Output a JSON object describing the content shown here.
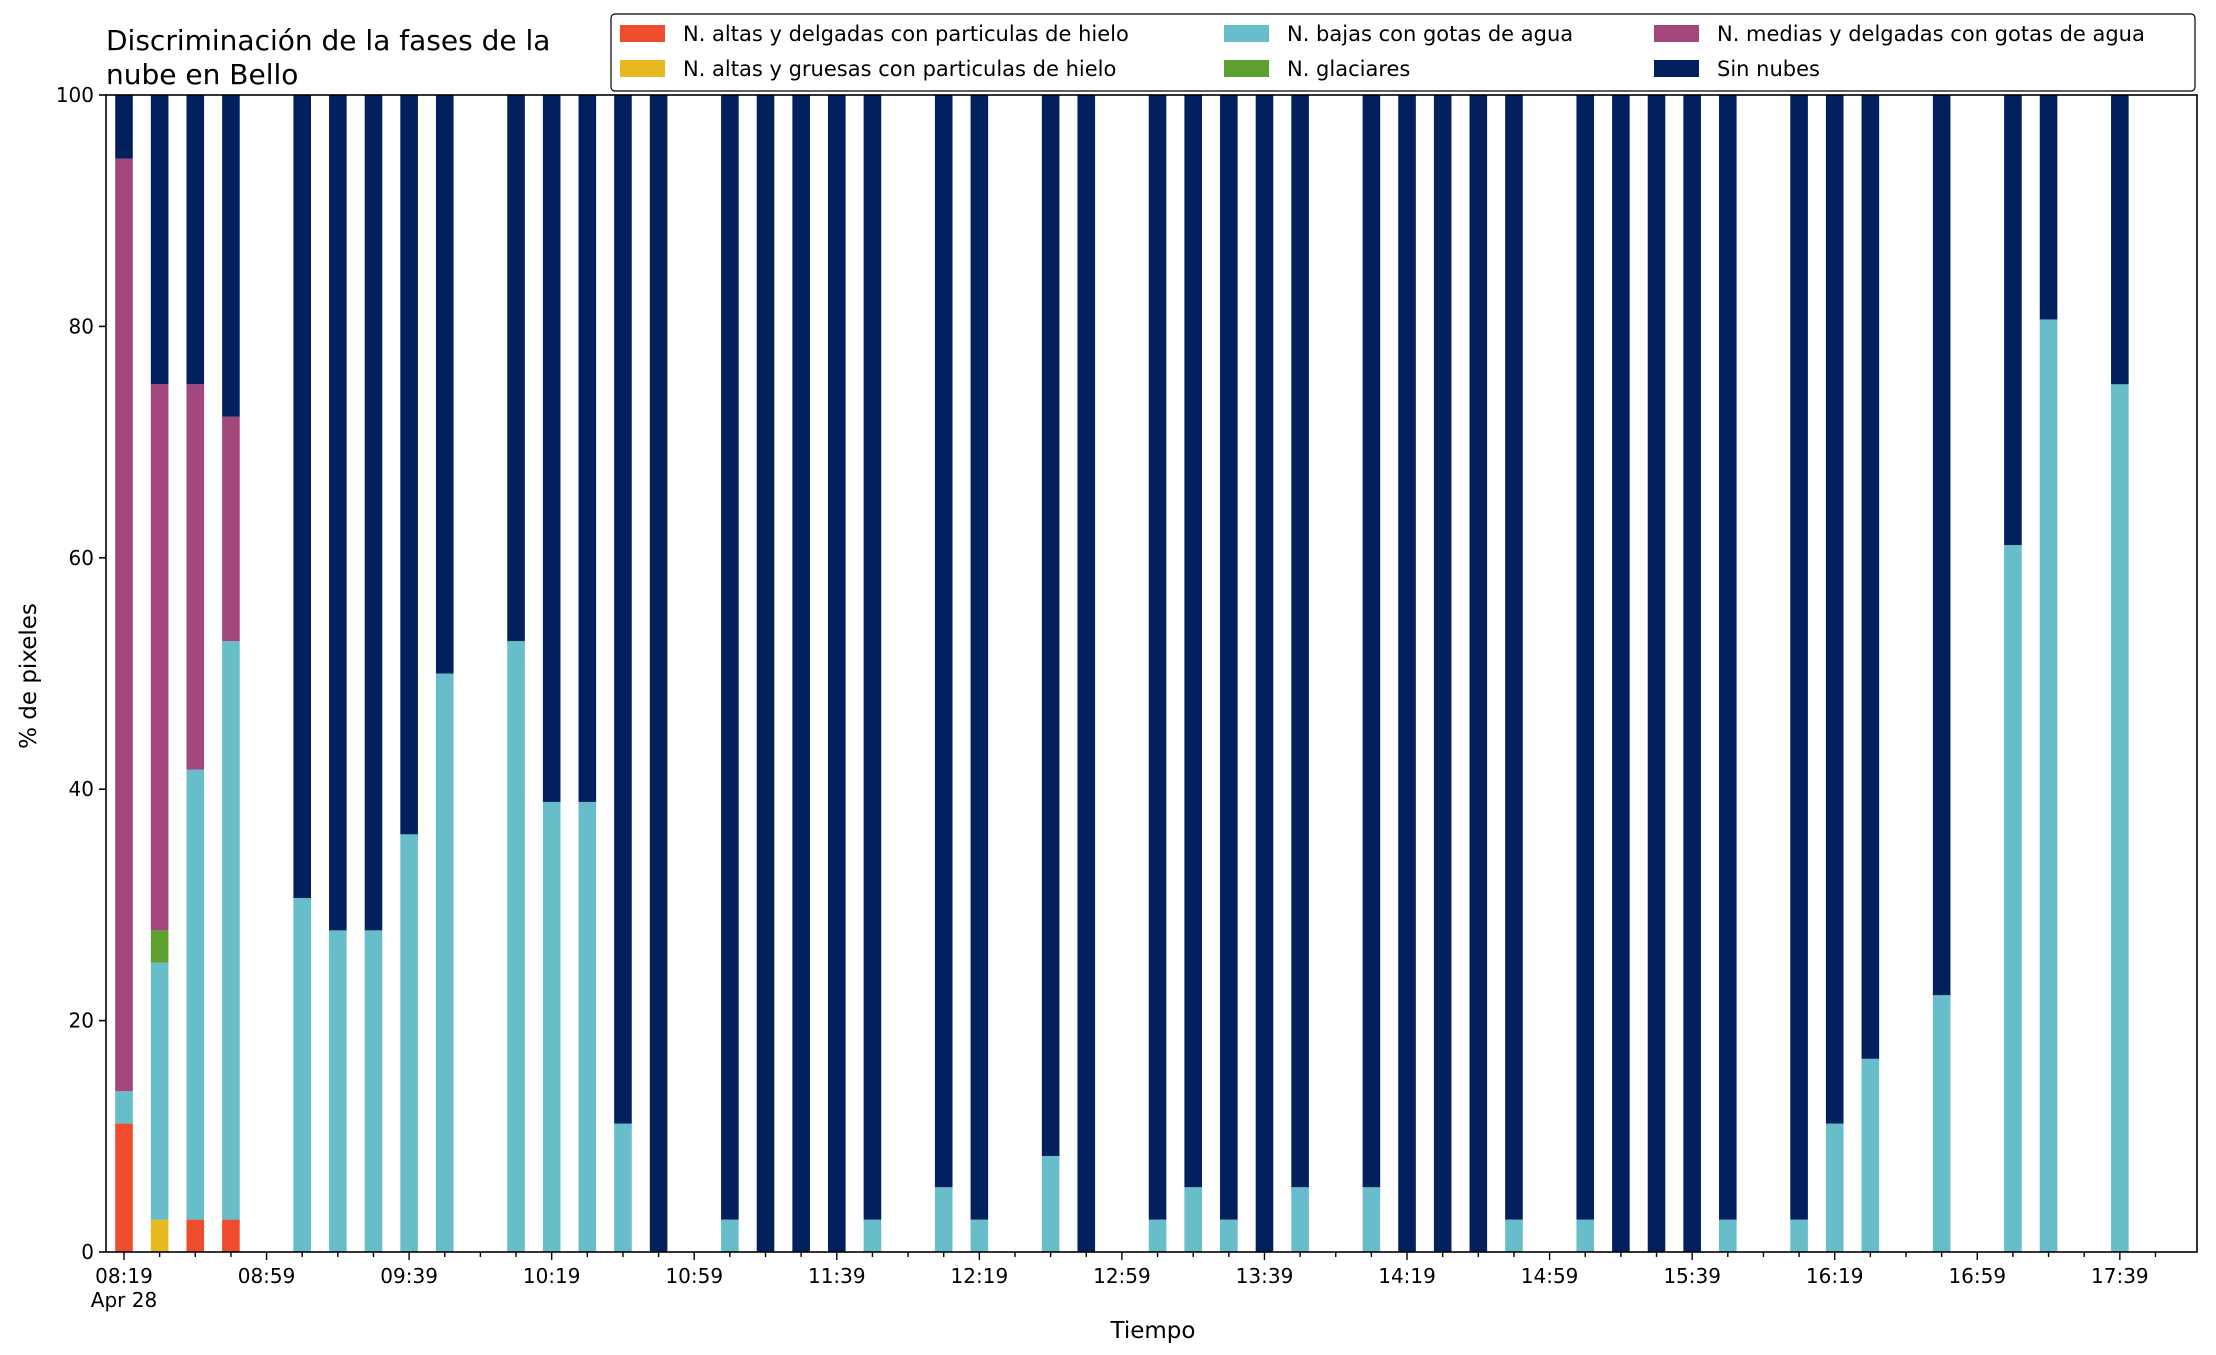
{
  "chart_data": {
    "type": "bar",
    "stacked": true,
    "title_lines": [
      "Discriminación de la fases de la",
      "nube en Bello"
    ],
    "xlabel": "Tiempo",
    "ylabel": "% de pixeles",
    "ylim": [
      0,
      100
    ],
    "yticks": [
      0,
      20,
      40,
      60,
      80,
      100
    ],
    "x_axis": {
      "start": "08:19",
      "step_minutes": 10,
      "slots": 58
    },
    "xtick_labels": [
      {
        "slot": 0,
        "label": "08:19",
        "sublabel": "Apr 28"
      },
      {
        "slot": 4,
        "label": "08:59"
      },
      {
        "slot": 8,
        "label": "09:39"
      },
      {
        "slot": 12,
        "label": "10:19"
      },
      {
        "slot": 16,
        "label": "10:59"
      },
      {
        "slot": 20,
        "label": "11:39"
      },
      {
        "slot": 24,
        "label": "12:19"
      },
      {
        "slot": 28,
        "label": "12:59"
      },
      {
        "slot": 32,
        "label": "13:39"
      },
      {
        "slot": 36,
        "label": "14:19"
      },
      {
        "slot": 40,
        "label": "14:59"
      },
      {
        "slot": 44,
        "label": "15:39"
      },
      {
        "slot": 48,
        "label": "16:19"
      },
      {
        "slot": 52,
        "label": "16:59"
      },
      {
        "slot": 56,
        "label": "17:39"
      }
    ],
    "legend_position": "top-right",
    "legend_columns": 3,
    "series": [
      {
        "key": "altas_delgadas",
        "name": "N. altas y delgadas con particulas de hielo",
        "color": "#ee4c2c"
      },
      {
        "key": "altas_gruesas",
        "name": "N. altas y gruesas con particulas de hielo",
        "color": "#e6b91e"
      },
      {
        "key": "bajas",
        "name": "N. bajas con gotas de agua",
        "color": "#67bdc9"
      },
      {
        "key": "glaciares",
        "name": "N. glaciares",
        "color": "#5ea02f"
      },
      {
        "key": "medias",
        "name": "N. medias y delgadas con gotas de agua",
        "color": "#a3467c"
      },
      {
        "key": "sin_nubes",
        "name": "Sin nubes",
        "color": "#02205e"
      }
    ],
    "stack_order": [
      "altas_delgadas",
      "altas_gruesas",
      "bajas",
      "glaciares",
      "medias",
      "sin_nubes"
    ],
    "bars": [
      {
        "time": "08:19",
        "altas_delgadas": 11.1,
        "altas_gruesas": 0,
        "bajas": 2.8,
        "glaciares": 0,
        "medias": 80.6,
        "sin_nubes": 5.5
      },
      {
        "time": "08:29",
        "altas_delgadas": 0,
        "altas_gruesas": 2.8,
        "bajas": 22.2,
        "glaciares": 2.8,
        "medias": 47.2,
        "sin_nubes": 25.0
      },
      {
        "time": "08:39",
        "altas_delgadas": 2.8,
        "altas_gruesas": 0,
        "bajas": 38.9,
        "glaciares": 0,
        "medias": 33.3,
        "sin_nubes": 25.0
      },
      {
        "time": "08:49",
        "altas_delgadas": 2.8,
        "altas_gruesas": 0,
        "bajas": 50.0,
        "glaciares": 0,
        "medias": 19.4,
        "sin_nubes": 27.8
      },
      {
        "time": "09:09",
        "altas_delgadas": 0,
        "altas_gruesas": 0,
        "bajas": 30.6,
        "glaciares": 0,
        "medias": 0,
        "sin_nubes": 69.4
      },
      {
        "time": "09:19",
        "altas_delgadas": 0,
        "altas_gruesas": 0,
        "bajas": 27.8,
        "glaciares": 0,
        "medias": 0,
        "sin_nubes": 72.2
      },
      {
        "time": "09:29",
        "altas_delgadas": 0,
        "altas_gruesas": 0,
        "bajas": 27.8,
        "glaciares": 0,
        "medias": 0,
        "sin_nubes": 72.2
      },
      {
        "time": "09:39",
        "altas_delgadas": 0,
        "altas_gruesas": 0,
        "bajas": 36.1,
        "glaciares": 0,
        "medias": 0,
        "sin_nubes": 63.9
      },
      {
        "time": "09:49",
        "altas_delgadas": 0,
        "altas_gruesas": 0,
        "bajas": 50.0,
        "glaciares": 0,
        "medias": 0,
        "sin_nubes": 50.0
      },
      {
        "time": "10:09",
        "altas_delgadas": 0,
        "altas_gruesas": 0,
        "bajas": 52.8,
        "glaciares": 0,
        "medias": 0,
        "sin_nubes": 47.2
      },
      {
        "time": "10:19",
        "altas_delgadas": 0,
        "altas_gruesas": 0,
        "bajas": 38.9,
        "glaciares": 0,
        "medias": 0,
        "sin_nubes": 61.1
      },
      {
        "time": "10:29",
        "altas_delgadas": 0,
        "altas_gruesas": 0,
        "bajas": 38.9,
        "glaciares": 0,
        "medias": 0,
        "sin_nubes": 61.1
      },
      {
        "time": "10:39",
        "altas_delgadas": 0,
        "altas_gruesas": 0,
        "bajas": 11.1,
        "glaciares": 0,
        "medias": 0,
        "sin_nubes": 88.9
      },
      {
        "time": "10:49",
        "altas_delgadas": 0,
        "altas_gruesas": 0,
        "bajas": 0,
        "glaciares": 0,
        "medias": 0,
        "sin_nubes": 100
      },
      {
        "time": "11:09",
        "altas_delgadas": 0,
        "altas_gruesas": 0,
        "bajas": 2.8,
        "glaciares": 0,
        "medias": 0,
        "sin_nubes": 97.2
      },
      {
        "time": "11:19",
        "altas_delgadas": 0,
        "altas_gruesas": 0,
        "bajas": 0,
        "glaciares": 0,
        "medias": 0,
        "sin_nubes": 100
      },
      {
        "time": "11:29",
        "altas_delgadas": 0,
        "altas_gruesas": 0,
        "bajas": 0,
        "glaciares": 0,
        "medias": 0,
        "sin_nubes": 100
      },
      {
        "time": "11:39",
        "altas_delgadas": 0,
        "altas_gruesas": 0,
        "bajas": 0,
        "glaciares": 0,
        "medias": 0,
        "sin_nubes": 100
      },
      {
        "time": "11:49",
        "altas_delgadas": 0,
        "altas_gruesas": 0,
        "bajas": 2.8,
        "glaciares": 0,
        "medias": 0,
        "sin_nubes": 97.2
      },
      {
        "time": "12:09",
        "altas_delgadas": 0,
        "altas_gruesas": 0,
        "bajas": 5.6,
        "glaciares": 0,
        "medias": 0,
        "sin_nubes": 94.4
      },
      {
        "time": "12:19",
        "altas_delgadas": 0,
        "altas_gruesas": 0,
        "bajas": 2.8,
        "glaciares": 0,
        "medias": 0,
        "sin_nubes": 97.2
      },
      {
        "time": "12:39",
        "altas_delgadas": 0,
        "altas_gruesas": 0,
        "bajas": 8.3,
        "glaciares": 0,
        "medias": 0,
        "sin_nubes": 91.7
      },
      {
        "time": "12:49",
        "altas_delgadas": 0,
        "altas_gruesas": 0,
        "bajas": 0,
        "glaciares": 0,
        "medias": 0,
        "sin_nubes": 100
      },
      {
        "time": "13:09",
        "altas_delgadas": 0,
        "altas_gruesas": 0,
        "bajas": 2.8,
        "glaciares": 0,
        "medias": 0,
        "sin_nubes": 97.2
      },
      {
        "time": "13:19",
        "altas_delgadas": 0,
        "altas_gruesas": 0,
        "bajas": 5.6,
        "glaciares": 0,
        "medias": 0,
        "sin_nubes": 94.4
      },
      {
        "time": "13:29",
        "altas_delgadas": 0,
        "altas_gruesas": 0,
        "bajas": 2.8,
        "glaciares": 0,
        "medias": 0,
        "sin_nubes": 97.2
      },
      {
        "time": "13:39",
        "altas_delgadas": 0,
        "altas_gruesas": 0,
        "bajas": 0,
        "glaciares": 0,
        "medias": 0,
        "sin_nubes": 100
      },
      {
        "time": "13:49",
        "altas_delgadas": 0,
        "altas_gruesas": 0,
        "bajas": 5.6,
        "glaciares": 0,
        "medias": 0,
        "sin_nubes": 94.4
      },
      {
        "time": "14:09",
        "altas_delgadas": 0,
        "altas_gruesas": 0,
        "bajas": 5.6,
        "glaciares": 0,
        "medias": 0,
        "sin_nubes": 94.4
      },
      {
        "time": "14:19",
        "altas_delgadas": 0,
        "altas_gruesas": 0,
        "bajas": 0,
        "glaciares": 0,
        "medias": 0,
        "sin_nubes": 100
      },
      {
        "time": "14:29",
        "altas_delgadas": 0,
        "altas_gruesas": 0,
        "bajas": 0,
        "glaciares": 0,
        "medias": 0,
        "sin_nubes": 100
      },
      {
        "time": "14:39",
        "altas_delgadas": 0,
        "altas_gruesas": 0,
        "bajas": 0,
        "glaciares": 0,
        "medias": 0,
        "sin_nubes": 100
      },
      {
        "time": "14:49",
        "altas_delgadas": 0,
        "altas_gruesas": 0,
        "bajas": 2.8,
        "glaciares": 0,
        "medias": 0,
        "sin_nubes": 97.2
      },
      {
        "time": "15:09",
        "altas_delgadas": 0,
        "altas_gruesas": 0,
        "bajas": 2.8,
        "glaciares": 0,
        "medias": 0,
        "sin_nubes": 97.2
      },
      {
        "time": "15:19",
        "altas_delgadas": 0,
        "altas_gruesas": 0,
        "bajas": 0,
        "glaciares": 0,
        "medias": 0,
        "sin_nubes": 100
      },
      {
        "time": "15:29",
        "altas_delgadas": 0,
        "altas_gruesas": 0,
        "bajas": 0,
        "glaciares": 0,
        "medias": 0,
        "sin_nubes": 100
      },
      {
        "time": "15:39",
        "altas_delgadas": 0,
        "altas_gruesas": 0,
        "bajas": 0,
        "glaciares": 0,
        "medias": 0,
        "sin_nubes": 100
      },
      {
        "time": "15:49",
        "altas_delgadas": 0,
        "altas_gruesas": 0,
        "bajas": 2.8,
        "glaciares": 0,
        "medias": 0,
        "sin_nubes": 97.2
      },
      {
        "time": "16:09",
        "altas_delgadas": 0,
        "altas_gruesas": 0,
        "bajas": 2.8,
        "glaciares": 0,
        "medias": 0,
        "sin_nubes": 97.2
      },
      {
        "time": "16:19",
        "altas_delgadas": 0,
        "altas_gruesas": 0,
        "bajas": 11.1,
        "glaciares": 0,
        "medias": 0,
        "sin_nubes": 88.9
      },
      {
        "time": "16:29",
        "altas_delgadas": 0,
        "altas_gruesas": 0,
        "bajas": 16.7,
        "glaciares": 0,
        "medias": 0,
        "sin_nubes": 83.3
      },
      {
        "time": "16:49",
        "altas_delgadas": 0,
        "altas_gruesas": 0,
        "bajas": 22.2,
        "glaciares": 0,
        "medias": 0,
        "sin_nubes": 77.8
      },
      {
        "time": "17:09",
        "altas_delgadas": 0,
        "altas_gruesas": 0,
        "bajas": 61.1,
        "glaciares": 0,
        "medias": 0,
        "sin_nubes": 38.9
      },
      {
        "time": "17:19",
        "altas_delgadas": 0,
        "altas_gruesas": 0,
        "bajas": 80.6,
        "glaciares": 0,
        "medias": 0,
        "sin_nubes": 19.4
      },
      {
        "time": "17:39",
        "altas_delgadas": 0,
        "altas_gruesas": 0,
        "bajas": 75.0,
        "glaciares": 0,
        "medias": 0,
        "sin_nubes": 25.0
      }
    ]
  }
}
